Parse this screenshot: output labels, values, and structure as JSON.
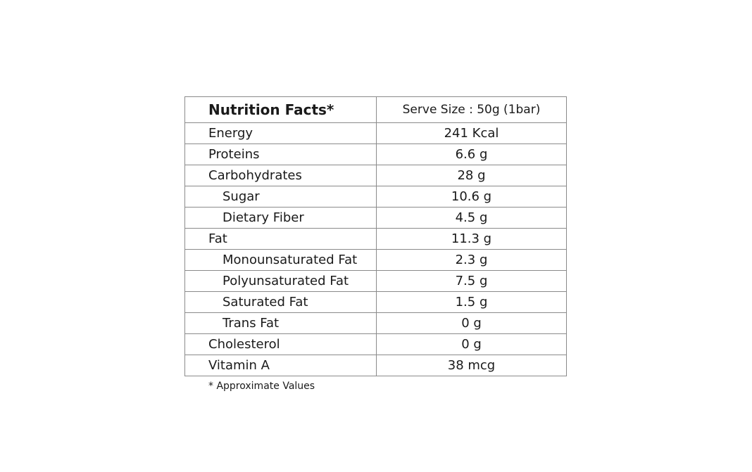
{
  "table": {
    "title": "Nutrition Facts*",
    "serve_size": "Serve Size : 50g (1bar)",
    "rows": [
      {
        "name": "Energy",
        "value": "241 Kcal",
        "indent": false
      },
      {
        "name": "Proteins",
        "value": "6.6 g",
        "indent": false
      },
      {
        "name": "Carbohydrates",
        "value": "28 g",
        "indent": false
      },
      {
        "name": "Sugar",
        "value": "10.6 g",
        "indent": true
      },
      {
        "name": "Dietary Fiber",
        "value": "4.5 g",
        "indent": true
      },
      {
        "name": "Fat",
        "value": "11.3 g",
        "indent": false
      },
      {
        "name": "Monounsaturated Fat",
        "value": "2.3 g",
        "indent": true
      },
      {
        "name": "Polyunsaturated Fat",
        "value": "7.5 g",
        "indent": true
      },
      {
        "name": "Saturated Fat",
        "value": "1.5 g",
        "indent": true
      },
      {
        "name": "Trans Fat",
        "value": "0 g",
        "indent": true
      },
      {
        "name": "Cholesterol",
        "value": "0 g",
        "indent": false
      },
      {
        "name": "Vitamin A",
        "value": "38 mcg",
        "indent": false
      }
    ]
  },
  "footnote": "* Approximate Values",
  "colors": {
    "border": "#8a8a8a",
    "text": "#1a1a1a",
    "background": "#ffffff"
  }
}
